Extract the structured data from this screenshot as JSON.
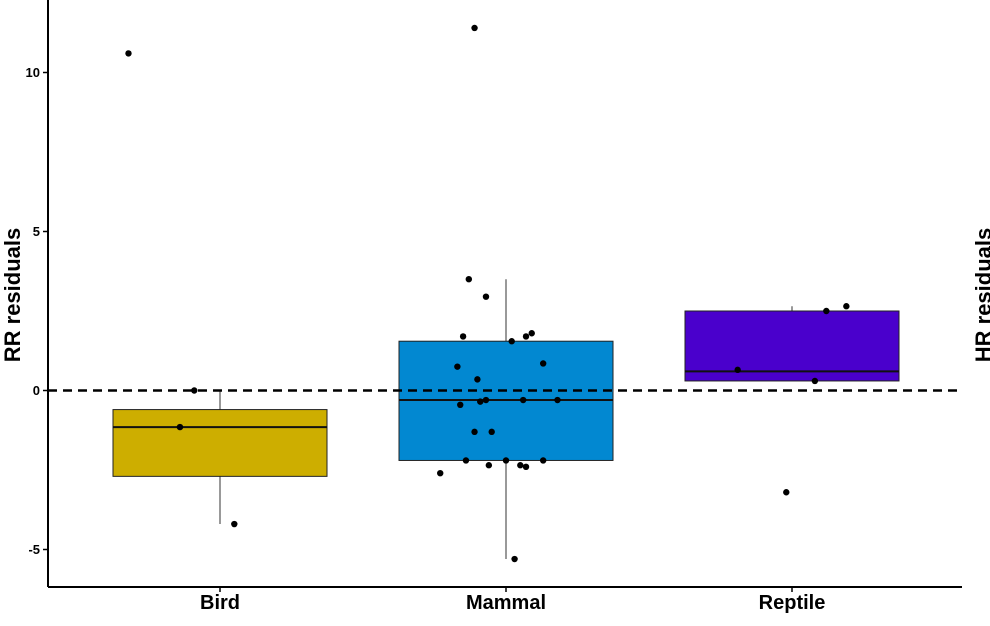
{
  "chart_data": {
    "type": "boxplot",
    "ylabel": "RR residuals",
    "right_ylabel": "HR residuals",
    "categories": [
      "Bird",
      "Mammal",
      "Reptile"
    ],
    "ylim": [
      -6.2,
      12.3
    ],
    "yticks": [
      -5,
      0,
      5,
      10
    ],
    "yticklabels": [
      "-5",
      "0",
      "5",
      "10"
    ],
    "reference_line": {
      "y": 0,
      "style": "dashed"
    },
    "grid": false,
    "boxes": [
      {
        "name": "Bird",
        "color": "#CDAE00",
        "whisker_low": -4.2,
        "q1": -2.7,
        "median": -1.15,
        "q3": -0.6,
        "whisker_high": 0.0
      },
      {
        "name": "Mammal",
        "color": "#0288D1",
        "whisker_low": -5.3,
        "q1": -2.2,
        "median": -0.3,
        "q3": 1.55,
        "whisker_high": 3.5
      },
      {
        "name": "Reptile",
        "color": "#4A00CC",
        "whisker_low": 0.3,
        "q1": 0.3,
        "median": 0.6,
        "q3": 2.5,
        "whisker_high": 2.65
      }
    ],
    "points": [
      {
        "category": "Bird",
        "x_offset": -0.32,
        "y": 10.6
      },
      {
        "category": "Bird",
        "x_offset": -0.09,
        "y": 0.0
      },
      {
        "category": "Bird",
        "x_offset": -0.14,
        "y": -1.15
      },
      {
        "category": "Bird",
        "x_offset": 0.05,
        "y": -4.2
      },
      {
        "category": "Mammal",
        "x_offset": -0.11,
        "y": 11.4
      },
      {
        "category": "Mammal",
        "x_offset": -0.13,
        "y": 3.5
      },
      {
        "category": "Mammal",
        "x_offset": -0.07,
        "y": 2.95
      },
      {
        "category": "Mammal",
        "x_offset": -0.15,
        "y": 1.7
      },
      {
        "category": "Mammal",
        "x_offset": 0.07,
        "y": 1.7
      },
      {
        "category": "Mammal",
        "x_offset": 0.09,
        "y": 1.8
      },
      {
        "category": "Mammal",
        "x_offset": 0.02,
        "y": 1.55
      },
      {
        "category": "Mammal",
        "x_offset": 0.13,
        "y": 0.85
      },
      {
        "category": "Mammal",
        "x_offset": -0.17,
        "y": 0.75
      },
      {
        "category": "Mammal",
        "x_offset": -0.1,
        "y": 0.35
      },
      {
        "category": "Mammal",
        "x_offset": -0.16,
        "y": -0.45
      },
      {
        "category": "Mammal",
        "x_offset": -0.09,
        "y": -0.35
      },
      {
        "category": "Mammal",
        "x_offset": -0.07,
        "y": -0.3
      },
      {
        "category": "Mammal",
        "x_offset": 0.06,
        "y": -0.3
      },
      {
        "category": "Mammal",
        "x_offset": 0.18,
        "y": -0.3
      },
      {
        "category": "Mammal",
        "x_offset": -0.11,
        "y": -1.3
      },
      {
        "category": "Mammal",
        "x_offset": -0.05,
        "y": -1.3
      },
      {
        "category": "Mammal",
        "x_offset": -0.23,
        "y": -2.6
      },
      {
        "category": "Mammal",
        "x_offset": -0.14,
        "y": -2.2
      },
      {
        "category": "Mammal",
        "x_offset": -0.06,
        "y": -2.35
      },
      {
        "category": "Mammal",
        "x_offset": 0.0,
        "y": -2.2
      },
      {
        "category": "Mammal",
        "x_offset": 0.05,
        "y": -2.35
      },
      {
        "category": "Mammal",
        "x_offset": 0.07,
        "y": -2.4
      },
      {
        "category": "Mammal",
        "x_offset": 0.13,
        "y": -2.2
      },
      {
        "category": "Mammal",
        "x_offset": 0.03,
        "y": -5.3
      },
      {
        "category": "Reptile",
        "x_offset": -0.19,
        "y": 0.65
      },
      {
        "category": "Reptile",
        "x_offset": 0.12,
        "y": 2.5
      },
      {
        "category": "Reptile",
        "x_offset": 0.19,
        "y": 2.65
      },
      {
        "category": "Reptile",
        "x_offset": 0.08,
        "y": 0.3
      },
      {
        "category": "Reptile",
        "x_offset": -0.02,
        "y": -3.2
      }
    ]
  }
}
